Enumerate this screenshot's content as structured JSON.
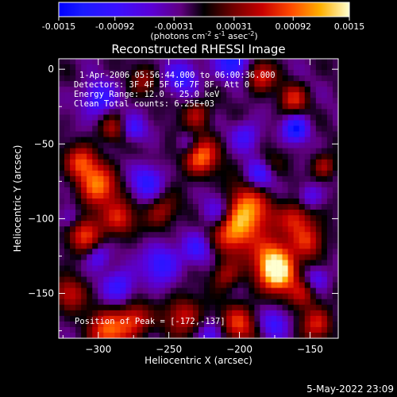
{
  "chart_data": {
    "type": "heatmap",
    "title": "Reconstructed RHESSI Image",
    "xlabel": "Heliocentric X (arcsec)",
    "ylabel": "Heliocentric Y (arcsec)",
    "xlim": [
      -328,
      -130
    ],
    "ylim": [
      -180,
      7
    ],
    "x_ticks": [
      -300,
      -250,
      -200,
      -150
    ],
    "y_ticks": [
      0,
      -50,
      -100,
      -150
    ],
    "colorbar": {
      "range": [
        -0.0015,
        0.0015
      ],
      "ticks": [
        "-0.0015",
        "-0.00092",
        "-0.00031",
        "0.00031",
        "0.00092",
        "0.0015"
      ],
      "label_main": "(photons cm",
      "label_exp1": "-2",
      "label_mid": " s",
      "label_exp2": "-1",
      "label_mid2": " asec",
      "label_exp3": "-2",
      "label_end": ")"
    },
    "annotations": [
      "1-Apr-2006 05:56:44.000 to 06:00:36.000",
      "Detectors: 3F 4F 5F 6F 7F 8F, Att 0",
      "Energy Range: 12.0 - 25.0 keV",
      "Clean     Total counts: 6.25E+03"
    ],
    "peak_label": "Position of Peak = [-172,-137]",
    "peak": {
      "x": -172,
      "y": -137
    },
    "bright_sources": [
      {
        "x": -172,
        "y": -137,
        "value": 0.0015
      },
      {
        "x": -195,
        "y": -95,
        "value": 0.0012
      },
      {
        "x": -228,
        "y": -58,
        "value": 0.0011
      },
      {
        "x": -300,
        "y": -78,
        "value": 0.0011
      },
      {
        "x": -293,
        "y": -175,
        "value": 0.001
      },
      {
        "x": -160,
        "y": -100,
        "value": 0.0009
      }
    ],
    "timestamp": "5-May-2022 23:09"
  }
}
